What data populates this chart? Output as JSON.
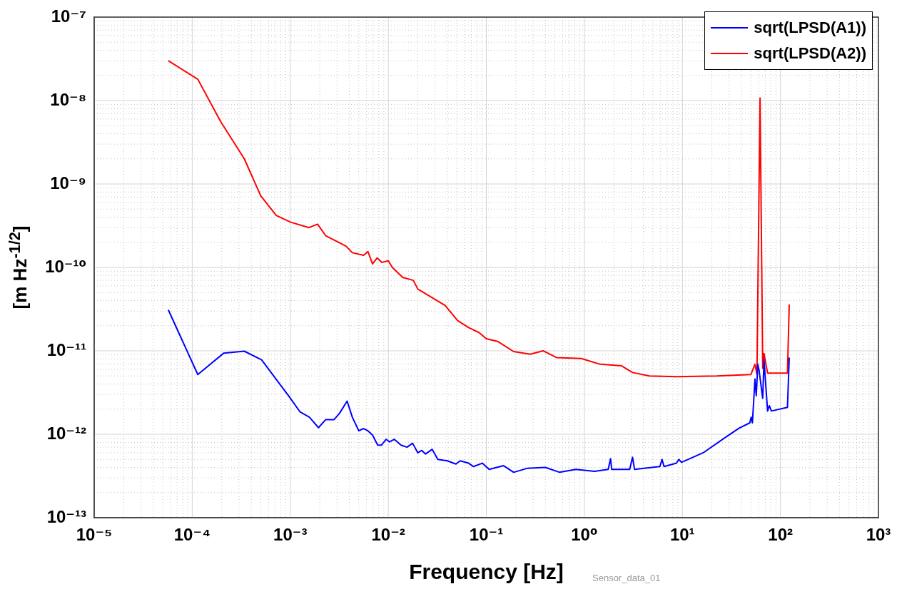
{
  "chart_data": {
    "type": "line",
    "xlabel": "Frequency [Hz]",
    "ylabel": "[m Hz$^{-1/2}$]",
    "log": "xy",
    "grid": true,
    "legend": "top right",
    "marker": "none",
    "line_style": "solid",
    "annotations": [
      "Sensor_data_01"
    ],
    "xlim": [
      1e-05,
      1000
    ],
    "ylim": [
      1e-13,
      1e-07
    ],
    "xticks": [
      {
        "value": 1e-05,
        "label": "10⁻⁵"
      },
      {
        "value": 2e-05,
        "label": null
      },
      {
        "value": 3e-05,
        "label": null
      },
      {
        "value": 4e-05,
        "label": null
      },
      {
        "value": 5e-05,
        "label": null
      },
      {
        "value": 6e-05,
        "label": null
      },
      {
        "value": 7e-05,
        "label": null
      },
      {
        "value": 8e-05,
        "label": null
      },
      {
        "value": 9e-05,
        "label": null
      },
      {
        "value": 0.0001,
        "label": "10⁻⁴"
      },
      {
        "value": 0.0002,
        "label": null
      },
      {
        "value": 0.0003,
        "label": null
      },
      {
        "value": 0.0004,
        "label": null
      },
      {
        "value": 0.0005,
        "label": null
      },
      {
        "value": 0.0006,
        "label": null
      },
      {
        "value": 0.0007,
        "label": null
      },
      {
        "value": 0.0008,
        "label": null
      },
      {
        "value": 0.0009,
        "label": null
      },
      {
        "value": 0.001,
        "label": "10⁻³"
      },
      {
        "value": 0.002,
        "label": null
      },
      {
        "value": 0.003,
        "label": null
      },
      {
        "value": 0.004,
        "label": null
      },
      {
        "value": 0.005,
        "label": null
      },
      {
        "value": 0.006,
        "label": null
      },
      {
        "value": 0.007,
        "label": null
      },
      {
        "value": 0.008,
        "label": null
      },
      {
        "value": 0.009,
        "label": null
      },
      {
        "value": 0.01,
        "label": "10⁻²"
      },
      {
        "value": 0.02,
        "label": null
      },
      {
        "value": 0.03,
        "label": null
      },
      {
        "value": 0.04,
        "label": null
      },
      {
        "value": 0.05,
        "label": null
      },
      {
        "value": 0.06,
        "label": null
      },
      {
        "value": 0.07,
        "label": null
      },
      {
        "value": 0.08,
        "label": null
      },
      {
        "value": 0.09,
        "label": null
      },
      {
        "value": 0.1,
        "label": "10⁻¹"
      },
      {
        "value": 0.2,
        "label": null
      },
      {
        "value": 0.3,
        "label": null
      },
      {
        "value": 0.4,
        "label": null
      },
      {
        "value": 0.5,
        "label": null
      },
      {
        "value": 0.6,
        "label": null
      },
      {
        "value": 0.7,
        "label": null
      },
      {
        "value": 0.8,
        "label": null
      },
      {
        "value": 0.9,
        "label": null
      },
      {
        "value": 1,
        "label": "10⁰"
      },
      {
        "value": 2,
        "label": null
      },
      {
        "value": 3,
        "label": null
      },
      {
        "value": 4,
        "label": null
      },
      {
        "value": 5,
        "label": null
      },
      {
        "value": 6,
        "label": null
      },
      {
        "value": 7,
        "label": null
      },
      {
        "value": 8,
        "label": null
      },
      {
        "value": 9,
        "label": null
      },
      {
        "value": 10,
        "label": "10¹"
      },
      {
        "value": 20,
        "label": null
      },
      {
        "value": 30,
        "label": null
      },
      {
        "value": 40,
        "label": null
      },
      {
        "value": 50,
        "label": null
      },
      {
        "value": 60,
        "label": null
      },
      {
        "value": 70,
        "label": null
      },
      {
        "value": 80,
        "label": null
      },
      {
        "value": 90,
        "label": null
      },
      {
        "value": 100,
        "label": "10²"
      },
      {
        "value": 200,
        "label": null
      },
      {
        "value": 300,
        "label": null
      },
      {
        "value": 400,
        "label": null
      },
      {
        "value": 500,
        "label": null
      },
      {
        "value": 600,
        "label": null
      },
      {
        "value": 700,
        "label": null
      },
      {
        "value": 800,
        "label": null
      },
      {
        "value": 900,
        "label": null
      },
      {
        "value": 1000,
        "label": "10³"
      }
    ],
    "yticks": [
      {
        "value": 1e-13,
        "label": "10⁻¹³"
      },
      {
        "value": 2e-13,
        "label": null
      },
      {
        "value": 3e-13,
        "label": null
      },
      {
        "value": 4e-13,
        "label": null
      },
      {
        "value": 5e-13,
        "label": null
      },
      {
        "value": 6e-13,
        "label": null
      },
      {
        "value": 7e-13,
        "label": null
      },
      {
        "value": 8e-13,
        "label": null
      },
      {
        "value": 9e-13,
        "label": null
      },
      {
        "value": 1e-12,
        "label": "10⁻¹²"
      },
      {
        "value": 2e-12,
        "label": null
      },
      {
        "value": 3e-12,
        "label": null
      },
      {
        "value": 4e-12,
        "label": null
      },
      {
        "value": 5e-12,
        "label": null
      },
      {
        "value": 6e-12,
        "label": null
      },
      {
        "value": 7e-12,
        "label": null
      },
      {
        "value": 8e-12,
        "label": null
      },
      {
        "value": 9e-12,
        "label": null
      },
      {
        "value": 1e-11,
        "label": "10⁻¹¹"
      },
      {
        "value": 2e-11,
        "label": null
      },
      {
        "value": 3e-11,
        "label": null
      },
      {
        "value": 4e-11,
        "label": null
      },
      {
        "value": 5e-11,
        "label": null
      },
      {
        "value": 6e-11,
        "label": null
      },
      {
        "value": 7e-11,
        "label": null
      },
      {
        "value": 8e-11,
        "label": null
      },
      {
        "value": 9e-11,
        "label": null
      },
      {
        "value": 1e-10,
        "label": "10⁻¹⁰"
      },
      {
        "value": 2e-10,
        "label": null
      },
      {
        "value": 3e-10,
        "label": null
      },
      {
        "value": 4e-10,
        "label": null
      },
      {
        "value": 5e-10,
        "label": null
      },
      {
        "value": 6e-10,
        "label": null
      },
      {
        "value": 7e-10,
        "label": null
      },
      {
        "value": 8e-10,
        "label": null
      },
      {
        "value": 9e-10,
        "label": null
      },
      {
        "value": 1e-09,
        "label": "10⁻⁹"
      },
      {
        "value": 2e-09,
        "label": null
      },
      {
        "value": 3e-09,
        "label": null
      },
      {
        "value": 4e-09,
        "label": null
      },
      {
        "value": 5e-09,
        "label": null
      },
      {
        "value": 6e-09,
        "label": null
      },
      {
        "value": 7e-09,
        "label": null
      },
      {
        "value": 8e-09,
        "label": null
      },
      {
        "value": 9e-09,
        "label": null
      },
      {
        "value": 1e-08,
        "label": "10⁻⁸"
      },
      {
        "value": 2e-08,
        "label": null
      },
      {
        "value": 3e-08,
        "label": null
      },
      {
        "value": 4e-08,
        "label": null
      },
      {
        "value": 5e-08,
        "label": null
      },
      {
        "value": 6e-08,
        "label": null
      },
      {
        "value": 7e-08,
        "label": null
      },
      {
        "value": 8e-08,
        "label": null
      },
      {
        "value": 9e-08,
        "label": null
      },
      {
        "value": 1e-07,
        "label": "10⁻⁷"
      }
    ],
    "series": [
      {
        "name": "sqrt(LPSD(A1))",
        "color": "#0000ff",
        "x": [
          5.7e-05,
          0.000114,
          0.00021,
          0.00034,
          0.00051,
          0.00098,
          0.00126,
          0.00157,
          0.00194,
          0.0023,
          0.0028,
          0.0032,
          0.0038,
          0.0043,
          0.005,
          0.0056,
          0.0062,
          0.0069,
          0.0078,
          0.0085,
          0.0095,
          0.0103,
          0.0115,
          0.0135,
          0.0155,
          0.0177,
          0.02,
          0.022,
          0.024,
          0.028,
          0.032,
          0.04,
          0.049,
          0.054,
          0.066,
          0.074,
          0.091,
          0.107,
          0.15,
          0.19,
          0.26,
          0.4,
          0.56,
          0.82,
          1.27,
          1.75,
          1.85,
          1.9,
          2.9,
          3.1,
          3.25,
          5.9,
          6.2,
          6.5,
          8.7,
          9.2,
          9.8,
          16.3,
          25.7,
          37.7,
          48.7,
          50.3,
          51.8,
          55,
          56.7,
          58.8,
          60.6,
          66,
          68,
          74,
          77,
          81,
          118,
          123
        ],
        "values": [
          3.1e-11,
          5.2e-12,
          9.4e-12,
          9.9e-12,
          7.8e-12,
          2.8e-12,
          1.85e-12,
          1.6e-12,
          1.2e-12,
          1.5e-12,
          1.5e-12,
          1.8e-12,
          2.5e-12,
          1.6e-12,
          1.1e-12,
          1.17e-12,
          1.1e-12,
          9.8e-13,
          7.4e-13,
          7.4e-13,
          8.7e-13,
          8.1e-13,
          8.7e-13,
          7.4e-13,
          7e-13,
          7.8e-13,
          6e-13,
          6.4e-13,
          5.8e-13,
          6.6e-13,
          5e-13,
          4.8e-13,
          4.4e-13,
          4.8e-13,
          4.5e-13,
          4.1e-13,
          4.5e-13,
          3.8e-13,
          4.2e-13,
          3.5e-13,
          3.9e-13,
          4e-13,
          3.5e-13,
          3.8e-13,
          3.6e-13,
          3.8e-13,
          5.1e-13,
          3.8e-13,
          3.8e-13,
          5.3e-13,
          3.8e-13,
          4.1e-13,
          5e-13,
          4.1e-13,
          4.5e-13,
          5e-13,
          4.6e-13,
          6e-13,
          8.7e-13,
          1.18e-12,
          1.37e-12,
          1.6e-12,
          1.37e-12,
          4.6e-12,
          2.9e-12,
          6.9e-12,
          5.8e-12,
          2.7e-12,
          7.8e-12,
          1.9e-12,
          2.2e-12,
          1.9e-12,
          2.1e-12,
          8.3e-12
        ]
      },
      {
        "name": "sqrt(LPSD(A2))",
        "color": "#ff0000",
        "x": [
          5.7e-05,
          0.000114,
          0.000195,
          0.00034,
          0.0005,
          0.00072,
          0.001,
          0.00155,
          0.0019,
          0.0023,
          0.0037,
          0.0043,
          0.0056,
          0.0062,
          0.0069,
          0.0077,
          0.0086,
          0.01,
          0.011,
          0.014,
          0.018,
          0.02,
          0.025,
          0.038,
          0.051,
          0.066,
          0.084,
          0.1,
          0.13,
          0.19,
          0.28,
          0.38,
          0.52,
          0.93,
          1.45,
          2.4,
          3.1,
          4.6,
          8.7,
          22.5,
          50,
          55,
          57.6,
          62,
          66,
          68,
          74,
          118,
          123
        ],
        "values": [
          3e-08,
          1.8e-08,
          5.6e-09,
          2e-09,
          7.2e-10,
          4.2e-10,
          3.5e-10,
          3e-10,
          3.3e-10,
          2.4e-10,
          1.8e-10,
          1.5e-10,
          1.4e-10,
          1.55e-10,
          1.1e-10,
          1.3e-10,
          1.15e-10,
          1.2e-10,
          1e-10,
          7.6e-11,
          7e-11,
          5.5e-11,
          4.7e-11,
          3.5e-11,
          2.3e-11,
          1.9e-11,
          1.66e-11,
          1.4e-11,
          1.3e-11,
          9.8e-12,
          9.1e-12,
          1e-11,
          8.3e-12,
          8.1e-12,
          6.9e-12,
          6.6e-12,
          5.5e-12,
          5e-12,
          4.9e-12,
          5e-12,
          5.2e-12,
          6.9e-12,
          5.2e-12,
          1.07e-08,
          6.2e-12,
          9.3e-12,
          5.4e-12,
          5.4e-12,
          3.6e-11
        ]
      }
    ]
  }
}
